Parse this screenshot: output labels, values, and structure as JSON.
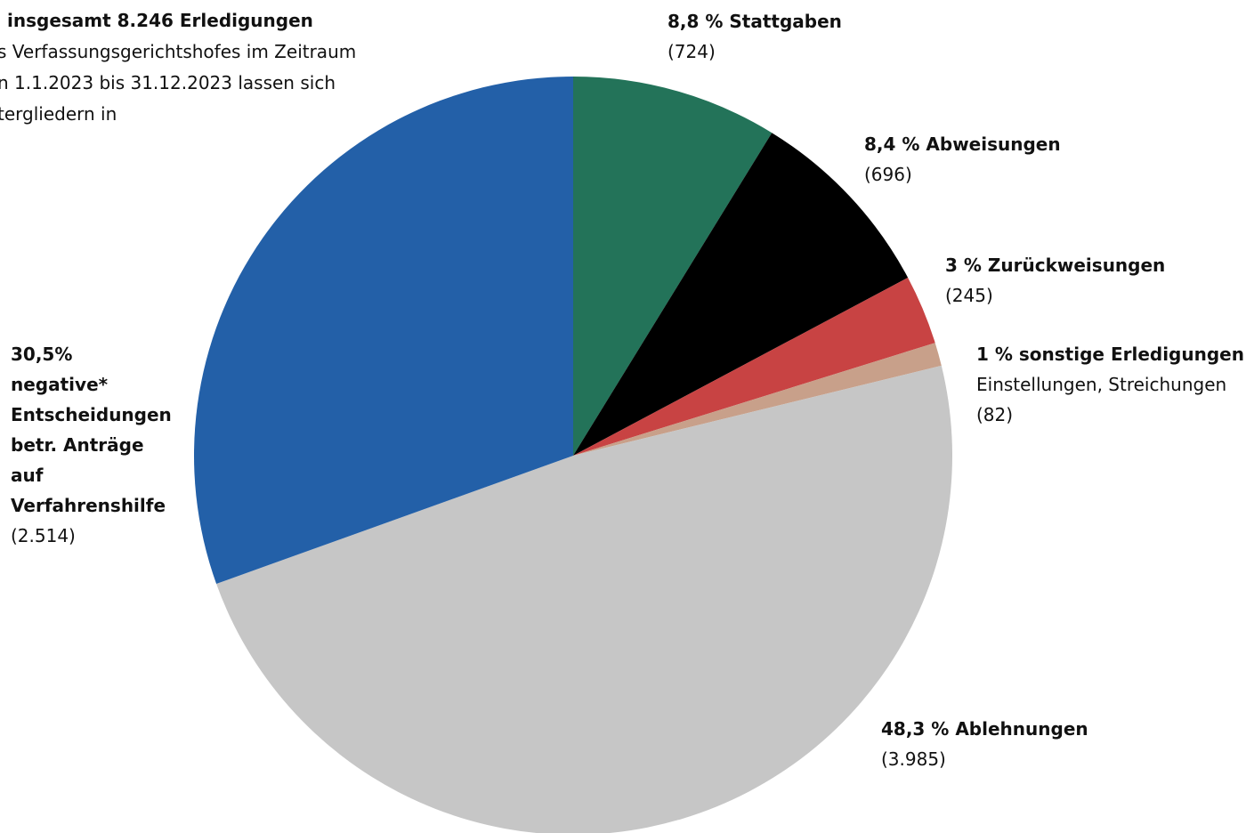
{
  "chart_data": {
    "type": "pie",
    "title": "insgesamt 8.246 Erledigungen",
    "subtitle_lines": [
      "s Verfassungsgerichtshofes im Zeitraum",
      "n 1.1.2023 bis 31.12.2023 lassen sich",
      "tergliedern in"
    ],
    "categories": [
      "Stattgaben",
      "Abweisungen",
      "Zurückweisungen",
      "sonstige Erledigungen",
      "Ablehnungen",
      "negative* Entscheidungen betr. Anträge auf Verfahrenshilfe"
    ],
    "values": [
      724,
      696,
      245,
      82,
      3985,
      2514
    ],
    "value_labels": [
      "(724)",
      "(696)",
      "(245)",
      "(82)",
      "(3.985)",
      "(2.514)"
    ],
    "percent_labels": [
      "8,8 %",
      "8,4 %",
      "3 %",
      "1 %",
      "48,3 %",
      "30,5%"
    ],
    "colors": [
      "#237359",
      "#000000",
      "#c84343",
      "#c8a08a",
      "#c6c6c6",
      "#2360a8"
    ],
    "annotations": [
      {
        "slice": 3,
        "text": "Einstellungen, Streichungen"
      }
    ]
  }
}
